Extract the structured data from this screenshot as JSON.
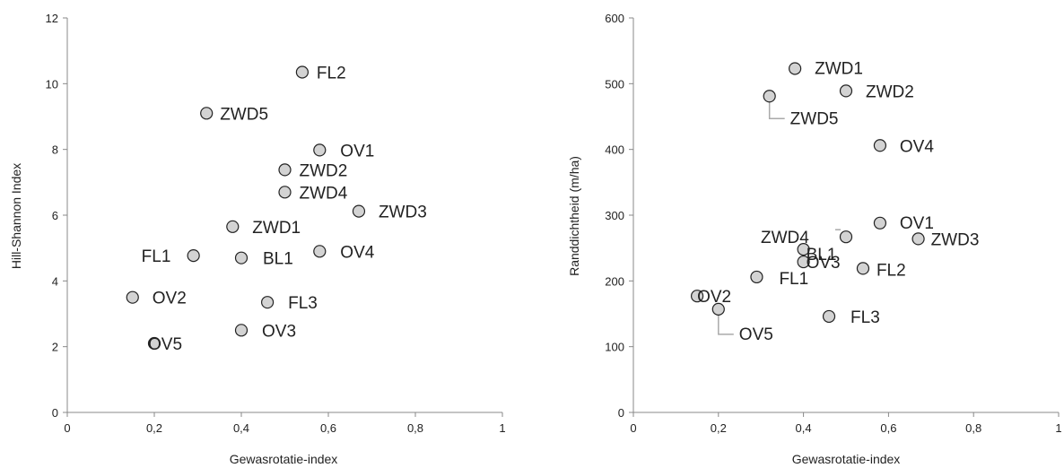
{
  "chart_data": [
    {
      "type": "scatter",
      "title": "",
      "xlabel": "Gewasrotatie-index",
      "ylabel": "Hill-Shannon Index",
      "xlim": [
        0,
        1
      ],
      "ylim": [
        0,
        12
      ],
      "xticks": [
        0,
        0.2,
        0.4,
        0.6,
        0.8,
        1
      ],
      "yticks": [
        0,
        2,
        4,
        6,
        8,
        10,
        12
      ],
      "x_tick_labels": [
        "0",
        "0,2",
        "0,4",
        "0,6",
        "0,8",
        "1"
      ],
      "y_tick_labels": [
        "0",
        "2",
        "4",
        "6",
        "8",
        "10",
        "12"
      ],
      "grid": false,
      "marker_color": "#d3d3d3",
      "points": [
        {
          "label": "FL2",
          "x": 0.54,
          "y": 10.35
        },
        {
          "label": "ZWD5",
          "x": 0.32,
          "y": 9.1
        },
        {
          "label": "OV1",
          "x": 0.58,
          "y": 7.98
        },
        {
          "label": "ZWD2",
          "x": 0.5,
          "y": 7.38
        },
        {
          "label": "ZWD4",
          "x": 0.5,
          "y": 6.7
        },
        {
          "label": "ZWD3",
          "x": 0.67,
          "y": 6.12
        },
        {
          "label": "ZWD1",
          "x": 0.38,
          "y": 5.65
        },
        {
          "label": "FL1",
          "x": 0.29,
          "y": 4.77
        },
        {
          "label": "BL1",
          "x": 0.4,
          "y": 4.7
        },
        {
          "label": "OV4",
          "x": 0.58,
          "y": 4.9
        },
        {
          "label": "OV2",
          "x": 0.15,
          "y": 3.5
        },
        {
          "label": "FL3",
          "x": 0.46,
          "y": 3.35
        },
        {
          "label": "OV3",
          "x": 0.4,
          "y": 2.5
        },
        {
          "label": "OV5",
          "x": 0.2,
          "y": 2.1
        }
      ]
    },
    {
      "type": "scatter",
      "title": "",
      "xlabel": "Gewasrotatie-index",
      "ylabel": "Randdichtheid (m/ha)",
      "xlim": [
        0,
        1
      ],
      "ylim": [
        0,
        600
      ],
      "xticks": [
        0,
        0.2,
        0.4,
        0.6,
        0.8,
        1
      ],
      "yticks": [
        0,
        100,
        200,
        300,
        400,
        500,
        600
      ],
      "x_tick_labels": [
        "0",
        "0,2",
        "0,4",
        "0,6",
        "0,8",
        "1"
      ],
      "y_tick_labels": [
        "0",
        "100",
        "200",
        "300",
        "400",
        "500",
        "600"
      ],
      "grid": false,
      "marker_color": "#d3d3d3",
      "points": [
        {
          "label": "ZWD1",
          "x": 0.38,
          "y": 523
        },
        {
          "label": "ZWD2",
          "x": 0.5,
          "y": 489
        },
        {
          "label": "ZWD5",
          "x": 0.32,
          "y": 481
        },
        {
          "label": "OV4",
          "x": 0.58,
          "y": 406
        },
        {
          "label": "OV1",
          "x": 0.58,
          "y": 288
        },
        {
          "label": "ZWD4",
          "x": 0.5,
          "y": 267
        },
        {
          "label": "ZWD3",
          "x": 0.67,
          "y": 264
        },
        {
          "label": "BL1",
          "x": 0.4,
          "y": 248
        },
        {
          "label": "OV3",
          "x": 0.4,
          "y": 229
        },
        {
          "label": "FL2",
          "x": 0.54,
          "y": 219
        },
        {
          "label": "FL1",
          "x": 0.29,
          "y": 206
        },
        {
          "label": "OV2",
          "x": 0.15,
          "y": 177
        },
        {
          "label": "OV5",
          "x": 0.2,
          "y": 157
        },
        {
          "label": "FL3",
          "x": 0.46,
          "y": 146
        }
      ]
    }
  ]
}
